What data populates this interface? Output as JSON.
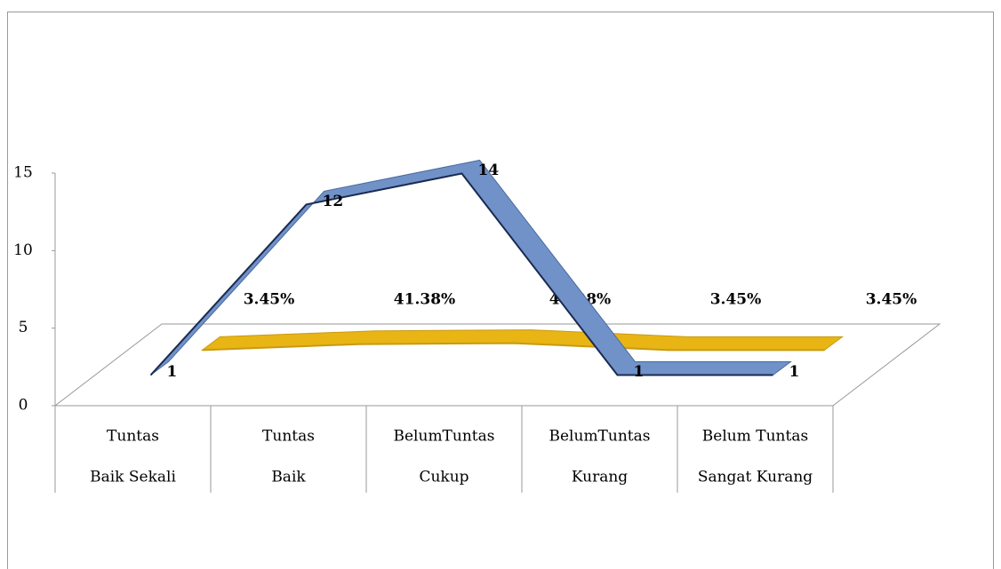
{
  "chart_data": {
    "type": "line3d",
    "categories": [
      [
        "Tuntas",
        "Baik Sekali"
      ],
      [
        "Tuntas",
        "Baik"
      ],
      [
        "BelumTuntas",
        "Cukup"
      ],
      [
        "BelumTuntas",
        "Kurang"
      ],
      [
        "Belum Tuntas",
        "Sangat Kurang"
      ]
    ],
    "series": [
      {
        "color": "#7092c8",
        "values": [
          1,
          12,
          14,
          1,
          1
        ]
      },
      {
        "color": "#e8b515",
        "values": [
          0.0345,
          0.4138,
          0.4828,
          0.0345,
          0.0345
        ],
        "value_labels": [
          "3.45%",
          "41.38%",
          "48.28%",
          "3.45%",
          "3.45%"
        ]
      }
    ],
    "ylim": [
      0,
      15
    ],
    "yticks": [
      0,
      5,
      10,
      15
    ]
  }
}
